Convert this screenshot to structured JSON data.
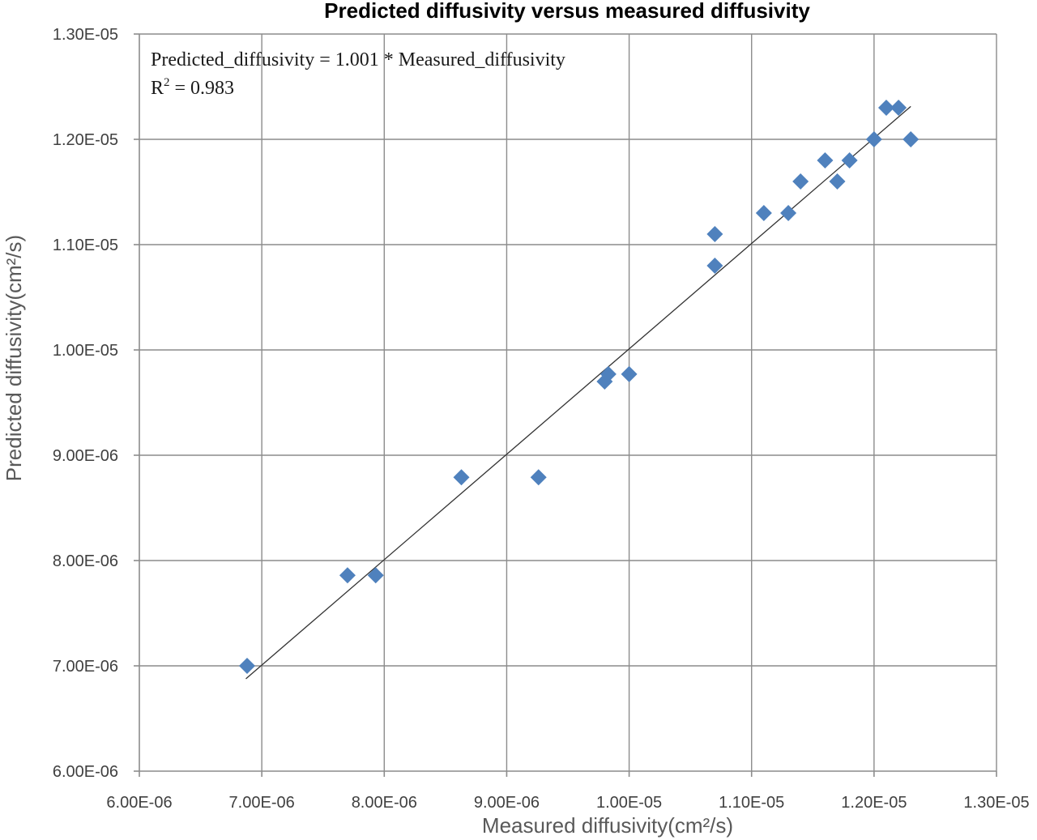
{
  "chart_data": {
    "type": "scatter",
    "title": "Predicted diffusivity versus measured diffusivity",
    "xlabel": "Measured diffusivity(cm²/s)",
    "ylabel": "Predicted diffusivity(cm²/s)",
    "xlim": [
      6e-06,
      1.3e-05
    ],
    "ylim": [
      6e-06,
      1.3e-05
    ],
    "x_ticks": [
      6e-06,
      7e-06,
      8e-06,
      9e-06,
      1e-05,
      1.1e-05,
      1.2e-05,
      1.3e-05
    ],
    "x_tick_labels": [
      "6.00E-06",
      "7.00E-06",
      "8.00E-06",
      "9.00E-06",
      "1.00E-05",
      "1.10E-05",
      "1.20E-05",
      "1.30E-05"
    ],
    "y_ticks": [
      6e-06,
      7e-06,
      8e-06,
      9e-06,
      1e-05,
      1.1e-05,
      1.2e-05,
      1.3e-05
    ],
    "y_tick_labels": [
      "6.00E-06",
      "7.00E-06",
      "8.00E-06",
      "9.00E-06",
      "1.00E-05",
      "1.10E-05",
      "1.20E-05",
      "1.30E-05"
    ],
    "grid": true,
    "marker": "diamond",
    "marker_color": "#4f81bd",
    "line_color": "#333333",
    "series": [
      {
        "x": [
          6.88e-06,
          7.7e-06,
          7.93e-06,
          8.63e-06,
          9.26e-06,
          9.8e-06,
          9.83e-06,
          1e-05,
          1.07e-05,
          1.07e-05,
          1.11e-05,
          1.13e-05,
          1.14e-05,
          1.16e-05,
          1.17e-05,
          1.18e-05,
          1.2e-05,
          1.21e-05,
          1.22e-05,
          1.23e-05
        ],
        "y": [
          7e-06,
          7.86e-06,
          7.86e-06,
          8.79e-06,
          8.79e-06,
          9.7e-06,
          9.77e-06,
          9.77e-06,
          1.11e-05,
          1.08e-05,
          1.13e-05,
          1.13e-05,
          1.16e-05,
          1.18e-05,
          1.16e-05,
          1.18e-05,
          1.2e-05,
          1.23e-05,
          1.23e-05,
          1.2e-05
        ]
      }
    ],
    "trendline": {
      "slope": 1.001,
      "x_range": [
        6.87e-06,
        1.23e-05
      ]
    },
    "annotation": {
      "equation": "Predicted_diffusivity = 1.001 * Measured_diffusivity",
      "r2_prefix": "R",
      "r2_sup": "2",
      "r2_value": " = 0.983"
    }
  }
}
